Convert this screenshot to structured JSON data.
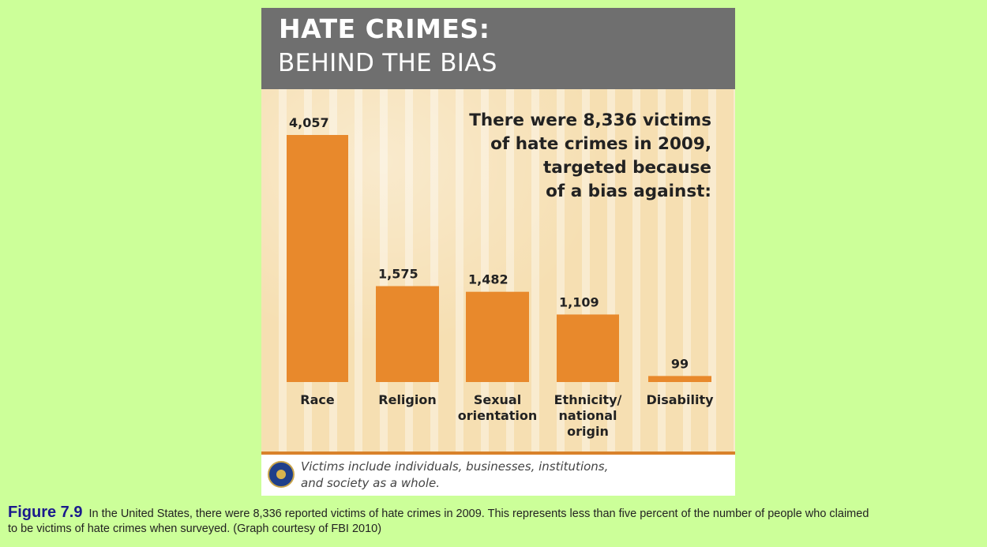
{
  "header": {
    "title": "HATE CRIMES:",
    "subtitle": "BEHIND THE BIAS"
  },
  "callout_lines": [
    "There were 8,336 victims",
    "of hate crimes in 2009,",
    "targeted because",
    "of a bias against:"
  ],
  "footer_lines": [
    "Victims include individuals, businesses, institutions,",
    "and society as a whole."
  ],
  "caption": {
    "label": "Figure 7.9",
    "text": "In the United States, there were 8,336 reported victims of hate crimes in 2009. This represents less than five percent of the number of people who claimed to be victims of hate crimes when surveyed. (Graph courtesy of FBI 2010)"
  },
  "colors": {
    "bar": "#e8892c",
    "page_background": "#ccff99",
    "header": "#6f6f6f",
    "caption_label": "#1a1a8c"
  },
  "chart_data": {
    "type": "bar",
    "title": "HATE CRIMES: BEHIND THE BIAS",
    "categories": [
      [
        "Race"
      ],
      [
        "Religion"
      ],
      [
        "Sexual",
        "orientation"
      ],
      [
        "Ethnicity/",
        "national",
        "origin"
      ],
      [
        "Disability"
      ]
    ],
    "values": [
      4057,
      1575,
      1482,
      1109,
      99
    ],
    "value_labels": [
      "4,057",
      "1,575",
      "1,482",
      "1,109",
      "99"
    ],
    "ylim": [
      0,
      4057
    ],
    "grid": false,
    "legend": "none"
  }
}
